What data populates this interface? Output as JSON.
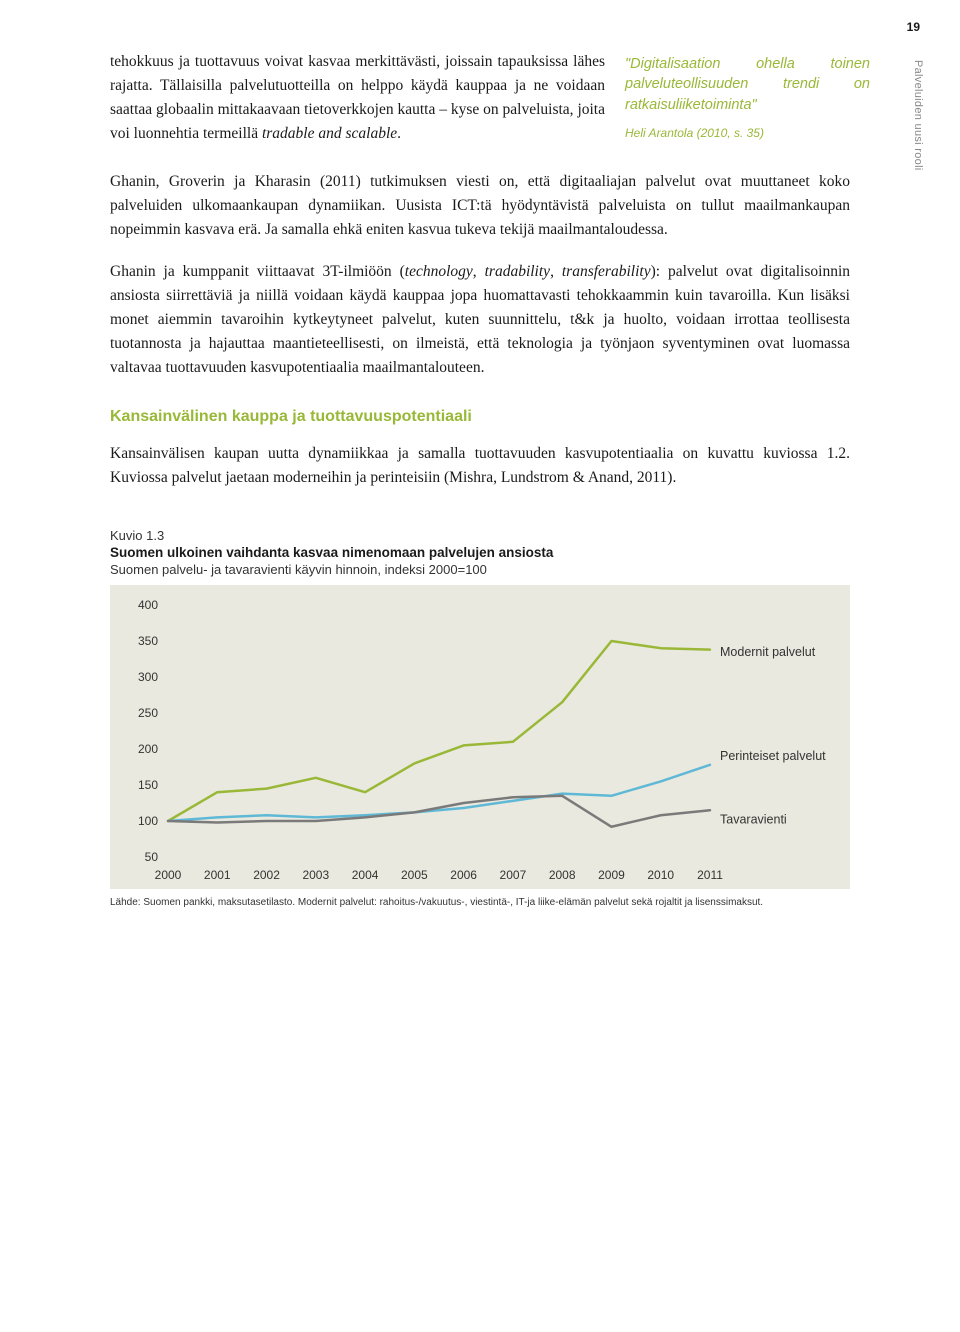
{
  "page_number": "19",
  "side_label": "Palveluiden uusi rooli",
  "paragraphs": {
    "p1_a": "tehokkuus ja tuottavuus voivat kasvaa merkittävästi, joissain tapauksissa lähes rajatta. Tällaisilla palvelutuotteilla on helppo käydä kauppaa ja ne voidaan saattaa globaalin mittakaavaan tietoverkkojen kautta – kyse on palveluista, joita voi luonnehtia termeillä ",
    "p1_italic1": "tradable and scalable",
    "p1_b": ".",
    "p2": "Ghanin, Groverin ja Kharasin (2011) tutkimuksen viesti on, että digitaaliajan palvelut ovat muuttaneet koko palveluiden ulkomaankaupan dynamiikan. Uusista ICT:tä hyödyntävistä palveluista on tullut maailmankaupan nopeimmin kasvava erä. Ja samalla ehkä eniten kasvua tukeva tekijä maailmantaloudessa.",
    "p3_a": "Ghanin ja kumppanit viittaavat 3T-ilmiöön (",
    "p3_i1": "technology",
    "p3_b": ", ",
    "p3_i2": "tradability",
    "p3_c": ", ",
    "p3_i3": "transferability",
    "p3_d": "): palvelut ovat digitalisoinnin ansiosta siirrettäviä ja niillä voidaan käydä kauppaa jopa huomattavasti tehokkaammin kuin tavaroilla. Kun lisäksi monet aiemmin tavaroihin kytkeytyneet palvelut, kuten suunnittelu, t&k ja huolto, voidaan irrottaa teollisesta tuotannosta ja hajauttaa maantieteellisesti, on ilmeistä, että teknologia ja työnjaon syventyminen ovat luomassa valtavaa tuottavuuden kasvupotentiaalia maailmantalouteen."
  },
  "pullquote": {
    "text": "\"Digitalisaation ohella toinen palveluteollisuuden trendi on ratkaisuliiketoiminta\"",
    "attribution": "Heli Arantola (2010, s. 35)"
  },
  "section_heading": "Kansainvälinen kauppa ja tuottavuuspotentiaali",
  "p4": "Kansainvälisen kaupan uutta dynamiikkaa ja samalla tuottavuuden kasvupotentiaalia on kuvattu kuviossa 1.2. Kuviossa palvelut jaetaan moderneihin ja perinteisiin (Mishra, Lundstrom & Anand, 2011).",
  "figure": {
    "label": "Kuvio 1.3",
    "title": "Suomen ulkoinen vaihdanta kasvaa nimenomaan palvelujen ansiosta",
    "subtitle": "Suomen palvelu- ja tavaravienti käyvin hinnoin, indeksi 2000=100",
    "source": "Lähde: Suomen pankki, maksutasetilasto. Modernit palvelut: rahoitus-/vakuutus-, viestintä-, IT-ja liike-elämän palvelut sekä rojaltit ja lisenssimaksut.",
    "chart": {
      "type": "line",
      "background_color": "#eae9df",
      "grid": false,
      "x_categories": [
        "2000",
        "2001",
        "2002",
        "2003",
        "2004",
        "2005",
        "2006",
        "2007",
        "2008",
        "2009",
        "2010",
        "2011"
      ],
      "y_min": 50,
      "y_max": 400,
      "y_ticks": [
        50,
        100,
        150,
        200,
        250,
        300,
        350,
        400
      ],
      "axis_fontsize": 12,
      "label_fontsize": 12.5,
      "series": [
        {
          "name": "Modernit palvelut",
          "color": "#99b838",
          "width": 2.5,
          "values": [
            100,
            140,
            145,
            160,
            140,
            180,
            205,
            210,
            265,
            350,
            340,
            338
          ],
          "label_y": 335
        },
        {
          "name": "Perinteiset palvelut",
          "color": "#5fb9d6",
          "width": 2.5,
          "values": [
            100,
            105,
            108,
            105,
            108,
            112,
            118,
            128,
            138,
            135,
            155,
            178
          ],
          "label_y": 190
        },
        {
          "name": "Tavaravienti",
          "color": "#7a7a7a",
          "width": 2.5,
          "values": [
            100,
            98,
            100,
            100,
            105,
            112,
            125,
            133,
            135,
            92,
            108,
            115
          ],
          "label_y": 102
        }
      ]
    }
  }
}
